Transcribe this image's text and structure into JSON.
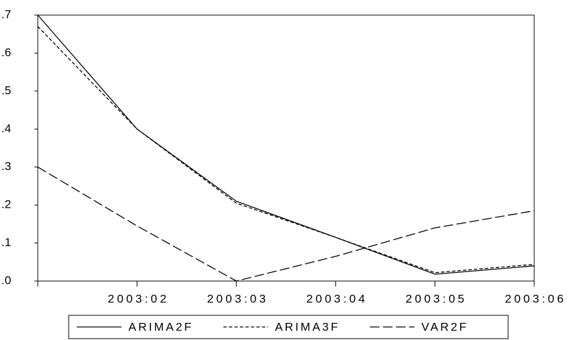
{
  "chart_data": {
    "type": "line",
    "categories": [
      null,
      "2003:02",
      "2003:03",
      "2003:04",
      "2003:05",
      "2003:06"
    ],
    "series": [
      {
        "name": "ARIMA2F",
        "color": "#000000",
        "values": [
          0.7,
          0.4,
          0.21,
          0.115,
          0.018,
          0.04
        ]
      },
      {
        "name": "ARIMA3F",
        "color": "#000000",
        "values": [
          0.67,
          0.4,
          0.205,
          0.115,
          0.022,
          0.044
        ]
      },
      {
        "name": "VAR2F",
        "color": "#000000",
        "values": [
          0.3,
          0.145,
          0.0,
          0.065,
          0.14,
          0.185
        ]
      }
    ],
    "ylim": [
      0,
      0.7
    ],
    "yticks": [
      {
        "value": 0,
        "label": ".0"
      },
      {
        "value": 0.1,
        "label": ".1"
      },
      {
        "value": 0.2,
        "label": ".2"
      },
      {
        "value": 0.3,
        "label": ".3"
      },
      {
        "value": 0.4,
        "label": ".4"
      },
      {
        "value": 0.5,
        "label": ".5"
      },
      {
        "value": 0.6,
        "label": ".6"
      },
      {
        "value": 0.7,
        "label": ".7"
      }
    ],
    "grid": false
  }
}
